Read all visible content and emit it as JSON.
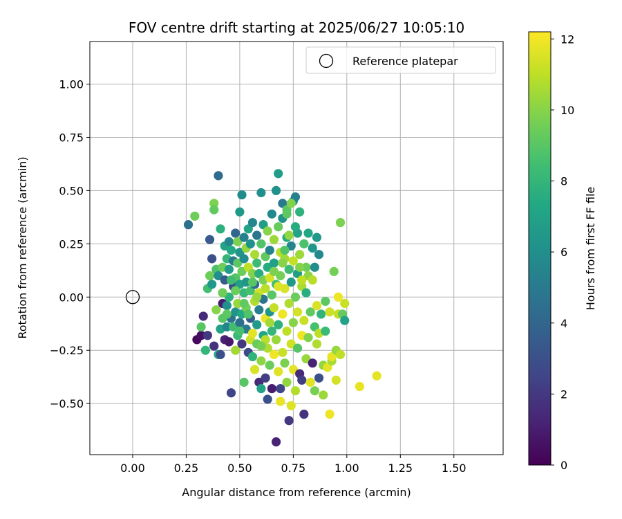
{
  "chart_data": {
    "type": "scatter",
    "title": "FOV centre drift starting at 2025/06/27 10:05:10",
    "xlabel": "Angular distance from reference (arcmin)",
    "ylabel": "Rotation from reference (arcmin)",
    "xlim": [
      -0.2,
      1.73
    ],
    "ylim": [
      -0.74,
      1.2
    ],
    "x_ticks": [
      0.0,
      0.25,
      0.5,
      0.75,
      1.0,
      1.25,
      1.5
    ],
    "x_tick_labels": [
      "0.00",
      "0.25",
      "0.50",
      "0.75",
      "1.00",
      "1.25",
      "1.50"
    ],
    "y_ticks": [
      -0.5,
      -0.25,
      0.0,
      0.25,
      0.5,
      0.75,
      1.0
    ],
    "y_tick_labels": [
      "−0.50",
      "−0.25",
      "0.00",
      "0.25",
      "0.50",
      "0.75",
      "1.00"
    ],
    "grid": true,
    "legend": {
      "position": "top-right",
      "entries": [
        {
          "label": "Reference platepar",
          "marker": "open-circle"
        }
      ]
    },
    "reference_point": {
      "x": 0.0,
      "y": 0.0
    },
    "colorbar": {
      "label": "Hours from first FF file",
      "range": [
        0,
        12.2
      ],
      "ticks": [
        0,
        2,
        4,
        6,
        8,
        10,
        12
      ],
      "tick_labels": [
        "0",
        "2",
        "4",
        "6",
        "8",
        "10",
        "12"
      ],
      "colormap": "viridis"
    },
    "points": [
      {
        "x": 0.26,
        "y": 0.34,
        "t": 4.5
      },
      {
        "x": 0.29,
        "y": 0.38,
        "t": 9.5
      },
      {
        "x": 0.3,
        "y": -0.2,
        "t": 0.3
      },
      {
        "x": 0.32,
        "y": -0.18,
        "t": 0.5
      },
      {
        "x": 0.32,
        "y": -0.14,
        "t": 9.0
      },
      {
        "x": 0.33,
        "y": -0.09,
        "t": 1.5
      },
      {
        "x": 0.34,
        "y": -0.25,
        "t": 8.0
      },
      {
        "x": 0.35,
        "y": -0.18,
        "t": 2.0
      },
      {
        "x": 0.35,
        "y": 0.04,
        "t": 8.5
      },
      {
        "x": 0.36,
        "y": 0.27,
        "t": 3.5
      },
      {
        "x": 0.36,
        "y": 0.1,
        "t": 9.5
      },
      {
        "x": 0.37,
        "y": 0.06,
        "t": 6.5
      },
      {
        "x": 0.37,
        "y": 0.18,
        "t": 3.0
      },
      {
        "x": 0.38,
        "y": 0.44,
        "t": 9.8
      },
      {
        "x": 0.38,
        "y": 0.41,
        "t": 9.2
      },
      {
        "x": 0.38,
        "y": -0.23,
        "t": 1.8
      },
      {
        "x": 0.39,
        "y": 0.13,
        "t": 8.7
      },
      {
        "x": 0.39,
        "y": -0.06,
        "t": 10.0
      },
      {
        "x": 0.4,
        "y": -0.27,
        "t": 7.5
      },
      {
        "x": 0.4,
        "y": 0.57,
        "t": 4.2
      },
      {
        "x": 0.4,
        "y": 0.1,
        "t": 6.0
      },
      {
        "x": 0.41,
        "y": -0.27,
        "t": 3.0
      },
      {
        "x": 0.41,
        "y": 0.32,
        "t": 7.7
      },
      {
        "x": 0.41,
        "y": -0.15,
        "t": 7.0
      },
      {
        "x": 0.42,
        "y": 0.02,
        "t": 6.8
      },
      {
        "x": 0.42,
        "y": 0.14,
        "t": 9.5
      },
      {
        "x": 0.42,
        "y": -0.1,
        "t": 9.0
      },
      {
        "x": 0.42,
        "y": -0.03,
        "t": 1.0
      },
      {
        "x": 0.43,
        "y": 0.24,
        "t": 7.0
      },
      {
        "x": 0.43,
        "y": -0.2,
        "t": 1.2
      },
      {
        "x": 0.43,
        "y": 0.08,
        "t": 3.5
      },
      {
        "x": 0.44,
        "y": -0.14,
        "t": 5.5
      },
      {
        "x": 0.44,
        "y": 0.18,
        "t": 8.0
      },
      {
        "x": 0.44,
        "y": -0.04,
        "t": 6.0
      },
      {
        "x": 0.45,
        "y": 0.26,
        "t": 5.5
      },
      {
        "x": 0.45,
        "y": -0.21,
        "t": 0.8
      },
      {
        "x": 0.45,
        "y": 0.13,
        "t": 6.7
      },
      {
        "x": 0.45,
        "y": 0.0,
        "t": 7.8
      },
      {
        "x": 0.46,
        "y": -0.45,
        "t": 2.5
      },
      {
        "x": 0.46,
        "y": 0.22,
        "t": 7.3
      },
      {
        "x": 0.46,
        "y": -0.1,
        "t": 4.7
      },
      {
        "x": 0.47,
        "y": 0.05,
        "t": 3.0
      },
      {
        "x": 0.47,
        "y": -0.14,
        "t": 8.4
      },
      {
        "x": 0.47,
        "y": 0.17,
        "t": 5.0
      },
      {
        "x": 0.48,
        "y": -0.07,
        "t": 6.2
      },
      {
        "x": 0.48,
        "y": 0.3,
        "t": 4.0
      },
      {
        "x": 0.48,
        "y": 0.09,
        "t": 8.9
      },
      {
        "x": 0.48,
        "y": -0.25,
        "t": 10.5
      },
      {
        "x": 0.49,
        "y": 0.26,
        "t": 9.8
      },
      {
        "x": 0.49,
        "y": -0.18,
        "t": 8.2
      },
      {
        "x": 0.49,
        "y": 0.16,
        "t": 9.1
      },
      {
        "x": 0.49,
        "y": -0.03,
        "t": 10.3
      },
      {
        "x": 0.5,
        "y": 0.21,
        "t": 6.3
      },
      {
        "x": 0.5,
        "y": 0.4,
        "t": 6.5
      },
      {
        "x": 0.5,
        "y": -0.12,
        "t": 4.5
      },
      {
        "x": 0.5,
        "y": 0.06,
        "t": 6.9
      },
      {
        "x": 0.51,
        "y": 0.48,
        "t": 5.8
      },
      {
        "x": 0.51,
        "y": -0.22,
        "t": 2.0
      },
      {
        "x": 0.51,
        "y": 0.12,
        "t": 9.4
      },
      {
        "x": 0.51,
        "y": -0.08,
        "t": 7.4
      },
      {
        "x": 0.52,
        "y": 0.28,
        "t": 5.3
      },
      {
        "x": 0.52,
        "y": -0.4,
        "t": 9.0
      },
      {
        "x": 0.52,
        "y": 0.02,
        "t": 8.1
      },
      {
        "x": 0.52,
        "y": 0.18,
        "t": 5.9
      },
      {
        "x": 0.53,
        "y": -0.15,
        "t": 5.0
      },
      {
        "x": 0.53,
        "y": 0.23,
        "t": 10.2
      },
      {
        "x": 0.53,
        "y": 0.07,
        "t": 6.4
      },
      {
        "x": 0.53,
        "y": -0.05,
        "t": 9.6
      },
      {
        "x": 0.54,
        "y": 0.14,
        "t": 11.0
      },
      {
        "x": 0.54,
        "y": -0.26,
        "t": 2.8
      },
      {
        "x": 0.54,
        "y": 0.32,
        "t": 7.1
      },
      {
        "x": 0.55,
        "y": -0.2,
        "t": 11.2
      },
      {
        "x": 0.55,
        "y": 0.03,
        "t": 8.6
      },
      {
        "x": 0.55,
        "y": 0.25,
        "t": 6.1
      },
      {
        "x": 0.55,
        "y": -0.1,
        "t": 3.7
      },
      {
        "x": 0.56,
        "y": 0.11,
        "t": 9.9
      },
      {
        "x": 0.56,
        "y": -0.17,
        "t": 11.7
      },
      {
        "x": 0.56,
        "y": 0.35,
        "t": 5.6
      },
      {
        "x": 0.56,
        "y": -0.28,
        "t": 7.9
      },
      {
        "x": 0.57,
        "y": 0.2,
        "t": 10.6
      },
      {
        "x": 0.57,
        "y": -0.02,
        "t": 10.8
      },
      {
        "x": 0.57,
        "y": 0.06,
        "t": 4.3
      },
      {
        "x": 0.57,
        "y": -0.34,
        "t": 11.5
      },
      {
        "x": 0.58,
        "y": 0.16,
        "t": 8.3
      },
      {
        "x": 0.58,
        "y": -0.13,
        "t": 6.6
      },
      {
        "x": 0.58,
        "y": 0.29,
        "t": 4.8
      },
      {
        "x": 0.58,
        "y": -0.22,
        "t": 9.3
      },
      {
        "x": 0.59,
        "y": 0.02,
        "t": 11.3
      },
      {
        "x": 0.59,
        "y": -0.4,
        "t": 1.5
      },
      {
        "x": 0.59,
        "y": 0.11,
        "t": 7.6
      },
      {
        "x": 0.59,
        "y": -0.06,
        "t": 5.2
      },
      {
        "x": 0.6,
        "y": 0.25,
        "t": 8.8
      },
      {
        "x": 0.6,
        "y": -0.43,
        "t": 7.0
      },
      {
        "x": 0.6,
        "y": 0.49,
        "t": 6.0
      },
      {
        "x": 0.6,
        "y": -0.3,
        "t": 10.1
      },
      {
        "x": 0.61,
        "y": 0.08,
        "t": 9.7
      },
      {
        "x": 0.61,
        "y": -0.18,
        "t": 7.2
      },
      {
        "x": 0.61,
        "y": 0.34,
        "t": 6.8
      },
      {
        "x": 0.61,
        "y": -0.01,
        "t": 4.6
      },
      {
        "x": 0.62,
        "y": 0.19,
        "t": 9.2
      },
      {
        "x": 0.62,
        "y": -0.1,
        "t": 11.8
      },
      {
        "x": 0.62,
        "y": 0.04,
        "t": 10.9
      },
      {
        "x": 0.62,
        "y": -0.38,
        "t": 2.2
      },
      {
        "x": 0.63,
        "y": -0.48,
        "t": 3.0
      },
      {
        "x": 0.63,
        "y": 0.14,
        "t": 7.5
      },
      {
        "x": 0.63,
        "y": -0.24,
        "t": 10.7
      },
      {
        "x": 0.63,
        "y": 0.31,
        "t": 10.0
      },
      {
        "x": 0.64,
        "y": -0.07,
        "t": 6.3
      },
      {
        "x": 0.64,
        "y": 0.22,
        "t": 5.4
      },
      {
        "x": 0.64,
        "y": 0.09,
        "t": 11.4
      },
      {
        "x": 0.64,
        "y": -0.32,
        "t": 9.4
      },
      {
        "x": 0.65,
        "y": 0.39,
        "t": 5.7
      },
      {
        "x": 0.65,
        "y": -0.16,
        "t": 8.0
      },
      {
        "x": 0.65,
        "y": 0.01,
        "t": 9.0
      },
      {
        "x": 0.65,
        "y": -0.43,
        "t": 1.0
      },
      {
        "x": 0.66,
        "y": 0.27,
        "t": 10.4
      },
      {
        "x": 0.66,
        "y": -0.27,
        "t": 11.9
      },
      {
        "x": 0.66,
        "y": 0.16,
        "t": 6.9
      },
      {
        "x": 0.66,
        "y": -0.05,
        "t": 11.1
      },
      {
        "x": 0.67,
        "y": -0.68,
        "t": 1.2
      },
      {
        "x": 0.67,
        "y": 0.5,
        "t": 6.1
      },
      {
        "x": 0.67,
        "y": -0.2,
        "t": 10.3
      },
      {
        "x": 0.67,
        "y": 0.06,
        "t": 8.5
      },
      {
        "x": 0.68,
        "y": 0.33,
        "t": 9.3
      },
      {
        "x": 0.68,
        "y": -0.35,
        "t": 11.6
      },
      {
        "x": 0.68,
        "y": 0.58,
        "t": 6.7
      },
      {
        "x": 0.68,
        "y": -0.13,
        "t": 7.8
      },
      {
        "x": 0.69,
        "y": 0.21,
        "t": 10.9
      },
      {
        "x": 0.69,
        "y": -0.49,
        "t": 11.8
      },
      {
        "x": 0.69,
        "y": -0.43,
        "t": 2.5
      },
      {
        "x": 0.69,
        "y": 0.1,
        "t": 9.6
      },
      {
        "x": 0.7,
        "y": 0.37,
        "t": 6.2
      },
      {
        "x": 0.7,
        "y": -0.26,
        "t": 11.2
      },
      {
        "x": 0.7,
        "y": 0.44,
        "t": 5.0
      },
      {
        "x": 0.7,
        "y": -0.08,
        "t": 11.9
      },
      {
        "x": 0.71,
        "y": 0.18,
        "t": 10.5
      },
      {
        "x": 0.71,
        "y": -0.31,
        "t": 9.8
      },
      {
        "x": 0.71,
        "y": 0.04,
        "t": 11.5
      },
      {
        "x": 0.72,
        "y": 0.28,
        "t": 7.4
      },
      {
        "x": 0.72,
        "y": -0.16,
        "t": 11.0
      },
      {
        "x": 0.72,
        "y": 0.41,
        "t": 9.1
      },
      {
        "x": 0.72,
        "y": -0.4,
        "t": 10.2
      },
      {
        "x": 0.73,
        "y": 0.13,
        "t": 8.3
      },
      {
        "x": 0.73,
        "y": -0.58,
        "t": 2.0
      },
      {
        "x": 0.73,
        "y": -0.03,
        "t": 10.7
      },
      {
        "x": 0.74,
        "y": 0.24,
        "t": 5.5
      },
      {
        "x": 0.74,
        "y": -0.22,
        "t": 11.3
      },
      {
        "x": 0.74,
        "y": 0.07,
        "t": 6.5
      },
      {
        "x": 0.74,
        "y": -0.51,
        "t": 11.6
      },
      {
        "x": 0.75,
        "y": 0.45,
        "t": 6.3
      },
      {
        "x": 0.75,
        "y": -0.12,
        "t": 10.0
      },
      {
        "x": 0.75,
        "y": 0.17,
        "t": 11.1
      },
      {
        "x": 0.75,
        "y": -0.34,
        "t": 11.7
      },
      {
        "x": 0.76,
        "y": 0.47,
        "t": 5.2
      },
      {
        "x": 0.76,
        "y": 0.0,
        "t": 9.4
      },
      {
        "x": 0.76,
        "y": -0.44,
        "t": 10.8
      },
      {
        "x": 0.77,
        "y": 0.3,
        "t": 7.0
      },
      {
        "x": 0.77,
        "y": -0.07,
        "t": 11.4
      },
      {
        "x": 0.77,
        "y": 0.11,
        "t": 6.8
      },
      {
        "x": 0.77,
        "y": -0.24,
        "t": 8.9
      },
      {
        "x": 0.78,
        "y": 0.2,
        "t": 10.4
      },
      {
        "x": 0.78,
        "y": -0.36,
        "t": 1.5
      },
      {
        "x": 0.78,
        "y": 0.4,
        "t": 7.8
      },
      {
        "x": 0.79,
        "y": -0.18,
        "t": 11.9
      },
      {
        "x": 0.79,
        "y": 0.05,
        "t": 10.6
      },
      {
        "x": 0.79,
        "y": -0.39,
        "t": 2.2
      },
      {
        "x": 0.8,
        "y": 0.25,
        "t": 8.7
      },
      {
        "x": 0.8,
        "y": -0.55,
        "t": 1.8
      },
      {
        "x": 0.8,
        "y": -0.11,
        "t": 11.2
      },
      {
        "x": 0.81,
        "y": 0.14,
        "t": 9.5
      },
      {
        "x": 0.81,
        "y": -0.29,
        "t": 10.3
      },
      {
        "x": 0.81,
        "y": 0.02,
        "t": 7.6
      },
      {
        "x": 0.82,
        "y": 0.3,
        "t": 7.2
      },
      {
        "x": 0.82,
        "y": -0.19,
        "t": 9.9
      },
      {
        "x": 0.82,
        "y": 0.1,
        "t": 10.1
      },
      {
        "x": 0.83,
        "y": -0.07,
        "t": 9.2
      },
      {
        "x": 0.83,
        "y": -0.4,
        "t": 11.6
      },
      {
        "x": 0.84,
        "y": 0.23,
        "t": 6.4
      },
      {
        "x": 0.84,
        "y": -0.31,
        "t": 1.2
      },
      {
        "x": 0.84,
        "y": 0.08,
        "t": 10.9
      },
      {
        "x": 0.85,
        "y": -0.14,
        "t": 8.6
      },
      {
        "x": 0.85,
        "y": -0.44,
        "t": 9.7
      },
      {
        "x": 0.85,
        "y": 0.14,
        "t": 6.0
      },
      {
        "x": 0.86,
        "y": -0.04,
        "t": 11.5
      },
      {
        "x": 0.86,
        "y": -0.22,
        "t": 10.7
      },
      {
        "x": 0.86,
        "y": 0.28,
        "t": 6.6
      },
      {
        "x": 0.87,
        "y": -0.38,
        "t": 3.0
      },
      {
        "x": 0.87,
        "y": 0.2,
        "t": 5.7
      },
      {
        "x": 0.87,
        "y": -0.17,
        "t": 11.0
      },
      {
        "x": 0.88,
        "y": -0.08,
        "t": 7.9
      },
      {
        "x": 0.89,
        "y": -0.32,
        "t": 10.2
      },
      {
        "x": 0.89,
        "y": -0.46,
        "t": 10.4
      },
      {
        "x": 0.9,
        "y": -0.16,
        "t": 8.2
      },
      {
        "x": 0.9,
        "y": -0.02,
        "t": 9.1
      },
      {
        "x": 0.91,
        "y": -0.33,
        "t": 11.7
      },
      {
        "x": 0.92,
        "y": -0.55,
        "t": 11.9
      },
      {
        "x": 0.92,
        "y": -0.07,
        "t": 11.3
      },
      {
        "x": 0.93,
        "y": -0.3,
        "t": 10.6
      },
      {
        "x": 0.93,
        "y": -0.28,
        "t": 11.8
      },
      {
        "x": 0.94,
        "y": 0.12,
        "t": 9.6
      },
      {
        "x": 0.95,
        "y": -0.25,
        "t": 10.3
      },
      {
        "x": 0.95,
        "y": -0.39,
        "t": 11.4
      },
      {
        "x": 0.96,
        "y": -0.08,
        "t": 11.1
      },
      {
        "x": 0.96,
        "y": 0.0,
        "t": 11.9
      },
      {
        "x": 0.97,
        "y": 0.35,
        "t": 9.8
      },
      {
        "x": 0.97,
        "y": -0.27,
        "t": 11.0
      },
      {
        "x": 0.98,
        "y": -0.08,
        "t": 9.3
      },
      {
        "x": 0.99,
        "y": -0.03,
        "t": 11.2
      },
      {
        "x": 0.99,
        "y": -0.11,
        "t": 7.0
      },
      {
        "x": 1.06,
        "y": -0.42,
        "t": 11.8
      },
      {
        "x": 1.14,
        "y": -0.37,
        "t": 11.7
      },
      {
        "x": 0.74,
        "y": 0.44,
        "t": 9.9
      },
      {
        "x": 0.72,
        "y": 0.39,
        "t": 9.1
      },
      {
        "x": 0.73,
        "y": 0.29,
        "t": 10.2
      },
      {
        "x": 0.71,
        "y": 0.22,
        "t": 8.8
      },
      {
        "x": 0.76,
        "y": 0.33,
        "t": 7.5
      },
      {
        "x": 0.78,
        "y": 0.14,
        "t": 9.9
      },
      {
        "x": 0.79,
        "y": 0.08,
        "t": 11.0
      },
      {
        "x": 0.7,
        "y": 0.16,
        "t": 10.0
      },
      {
        "x": 0.66,
        "y": 0.12,
        "t": 9.8
      },
      {
        "x": 0.68,
        "y": 0.05,
        "t": 11.6
      },
      {
        "x": 0.64,
        "y": -0.12,
        "t": 10.5
      },
      {
        "x": 0.62,
        "y": -0.2,
        "t": 10.9
      },
      {
        "x": 0.6,
        "y": -0.23,
        "t": 9.6
      },
      {
        "x": 0.58,
        "y": 0.0,
        "t": 10.3
      },
      {
        "x": 0.56,
        "y": 0.07,
        "t": 9.0
      },
      {
        "x": 0.54,
        "y": -0.08,
        "t": 8.8
      },
      {
        "x": 0.52,
        "y": -0.03,
        "t": 9.2
      },
      {
        "x": 0.5,
        "y": -0.16,
        "t": 8.6
      },
      {
        "x": 0.48,
        "y": 0.03,
        "t": 9.4
      },
      {
        "x": 0.46,
        "y": 0.08,
        "t": 8.4
      },
      {
        "x": 0.44,
        "y": -0.08,
        "t": 9.1
      },
      {
        "x": 0.42,
        "y": 0.02,
        "t": 9.5
      }
    ]
  }
}
